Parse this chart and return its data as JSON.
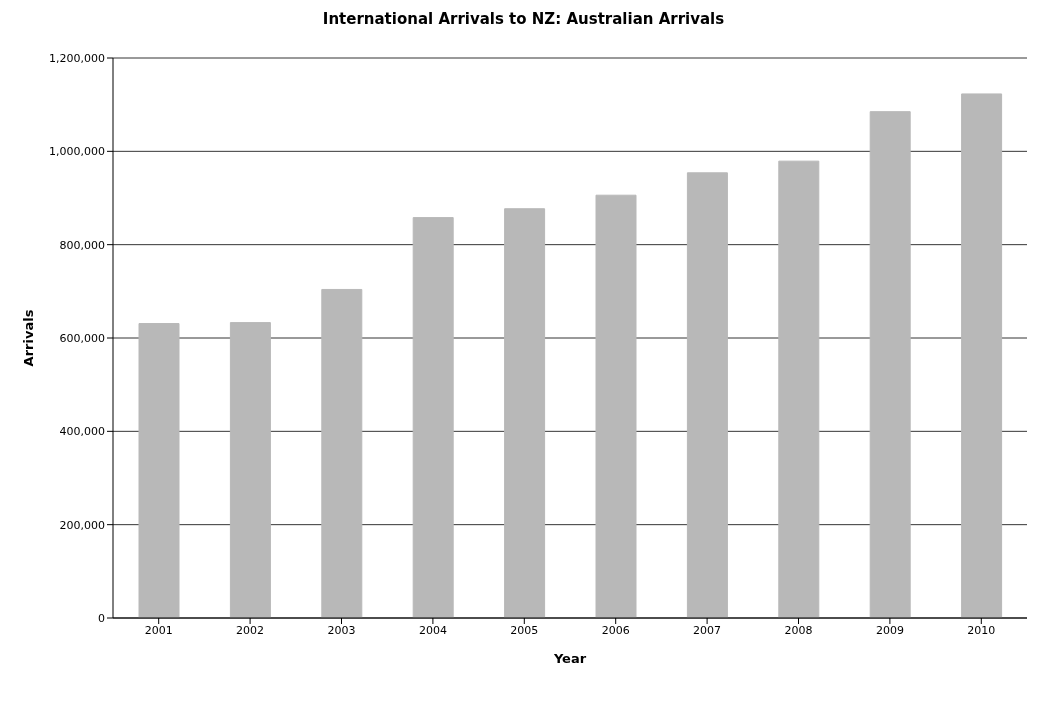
{
  "chart_data": {
    "type": "bar",
    "title": "International Arrivals to NZ: Australian Arrivals",
    "xlabel": "Year",
    "ylabel": "Arrivals",
    "categories": [
      "2001",
      "2002",
      "2003",
      "2004",
      "2005",
      "2006",
      "2007",
      "2008",
      "2009",
      "2010"
    ],
    "values": [
      631000,
      633000,
      704000,
      858000,
      877000,
      906000,
      954000,
      979000,
      1085000,
      1123000
    ],
    "color": "#b8b8b8",
    "ylim": [
      0,
      1200000
    ],
    "yticks": [
      {
        "value": 0,
        "label": "0"
      },
      {
        "value": 200000,
        "label": "200,000"
      },
      {
        "value": 400000,
        "label": "400,000"
      },
      {
        "value": 600000,
        "label": "600,000"
      },
      {
        "value": 800000,
        "label": "800,000"
      },
      {
        "value": 1000000,
        "label": "1,000,000"
      },
      {
        "value": 1200000,
        "label": "1,200,000"
      }
    ],
    "grid": "y"
  }
}
